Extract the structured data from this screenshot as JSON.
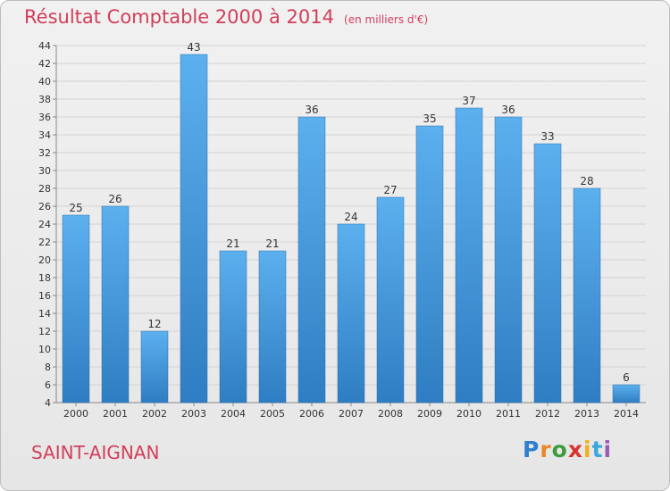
{
  "header": {
    "title": "Résultat Comptable 2000 à 2014",
    "subtitle": "(en milliers d'€)"
  },
  "footer": {
    "place": "SAINT-AIGNAN",
    "brand": "Proxiti"
  },
  "colors": {
    "bar": "#4f9ee0",
    "accent": "#d23e5a",
    "brand_letters": [
      "#2f7fd0",
      "#e8882a",
      "#3c9b3c",
      "#d8342f",
      "#f0b020",
      "#3aa8d8",
      "#9b59b6"
    ]
  },
  "chart_data": {
    "type": "bar",
    "title": "Résultat Comptable 2000 à 2014",
    "subtitle": "(en milliers d'€)",
    "xlabel": "",
    "ylabel": "",
    "categories": [
      "2000",
      "2001",
      "2002",
      "2003",
      "2004",
      "2005",
      "2006",
      "2007",
      "2008",
      "2009",
      "2010",
      "2011",
      "2012",
      "2013",
      "2014"
    ],
    "values": [
      25,
      26,
      12,
      43,
      21,
      21,
      36,
      24,
      27,
      35,
      37,
      36,
      33,
      28,
      6
    ],
    "ylim": [
      4,
      44
    ],
    "yticks": [
      4,
      6,
      8,
      10,
      12,
      14,
      16,
      18,
      20,
      22,
      24,
      26,
      28,
      30,
      32,
      34,
      36,
      38,
      40,
      42,
      44
    ],
    "grid": true,
    "legend": "none"
  }
}
